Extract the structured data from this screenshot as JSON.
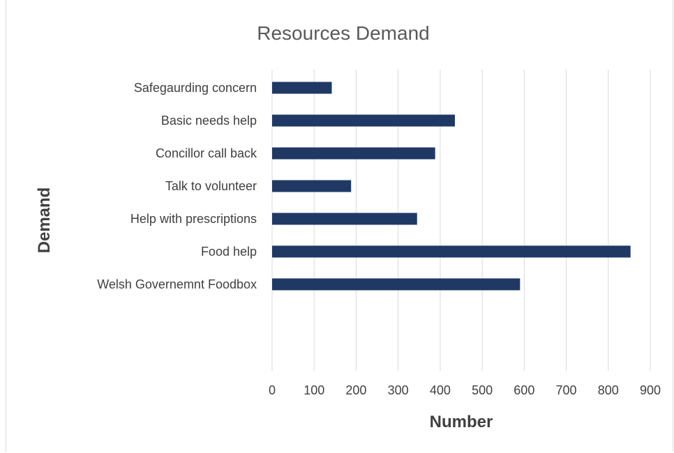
{
  "chart_data": {
    "type": "bar",
    "orientation": "horizontal",
    "title": "Resources Demand",
    "xlabel": "Number",
    "ylabel": "Demand",
    "categories": [
      "Safegaurding concern",
      "Basic needs help",
      "Concillor call back",
      "Talk to volunteer",
      "Help with prescriptions",
      "Food help",
      "Welsh Governemnt Foodbox"
    ],
    "values": [
      142,
      435,
      388,
      188,
      345,
      853,
      590
    ],
    "xlim": [
      0,
      900
    ],
    "xticks": [
      0,
      100,
      200,
      300,
      400,
      500,
      600,
      700,
      800,
      900
    ],
    "grid": "vertical",
    "legend": "none",
    "colors": {
      "bar": "#203864",
      "grid": "#d9d9d9",
      "text": "#404040",
      "title": "#595959"
    }
  }
}
